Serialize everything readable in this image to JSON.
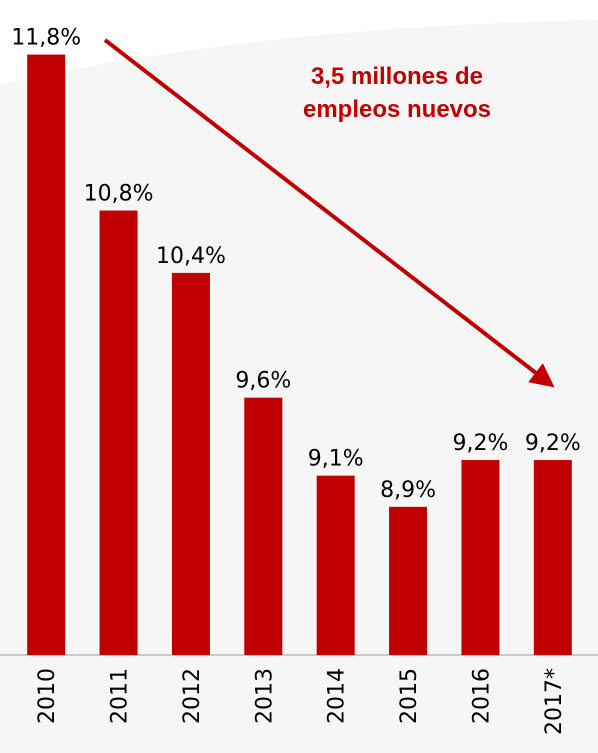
{
  "chart_data": {
    "type": "bar",
    "categories": [
      "2010",
      "2011",
      "2012",
      "2013",
      "2014",
      "2015",
      "2016",
      "2017*"
    ],
    "values": [
      11.8,
      10.8,
      10.4,
      9.6,
      9.1,
      8.9,
      9.2,
      9.2
    ],
    "value_labels": [
      "11,8%",
      "10,8%",
      "10,4%",
      "9,6%",
      "9,1%",
      "8,9%",
      "9,2%",
      "9,2%"
    ],
    "color": "#c00000",
    "ylim": [
      7.95,
      12.15
    ],
    "annotation": [
      "3,5 millones de",
      "empleos nuevos"
    ],
    "annotation_color": "#c00000"
  }
}
